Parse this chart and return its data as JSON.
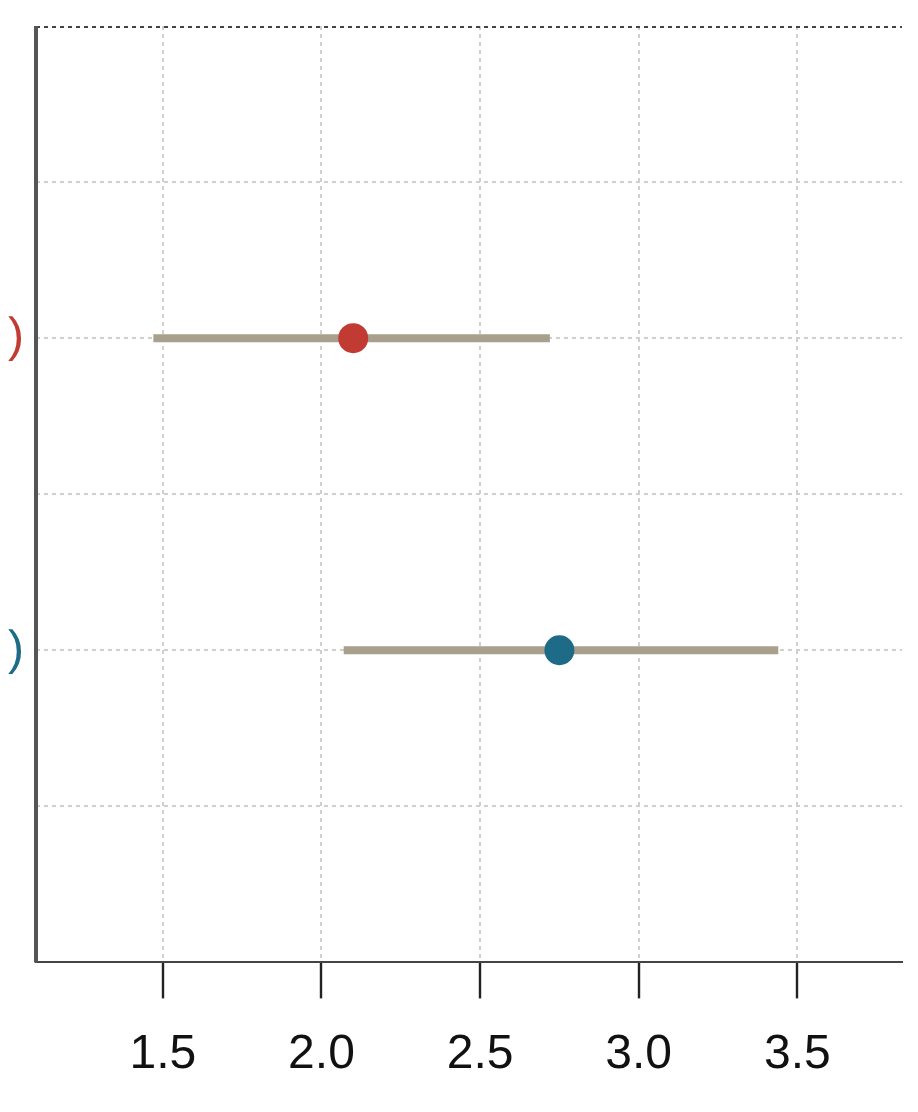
{
  "chart_data": {
    "type": "scatter",
    "orientation": "horizontal",
    "categories": [
      null,
      ")",
      null,
      ")",
      null
    ],
    "values": [
      null,
      2.1,
      null,
      2.75,
      null
    ],
    "colors": [
      null,
      "#c23b33",
      null,
      "#1d6b86",
      null
    ],
    "errors": [
      null,
      [
        1.47,
        2.72
      ],
      null,
      [
        2.07,
        3.44
      ],
      null
    ],
    "xlim": [
      1.1,
      3.83
    ],
    "xticks": [
      1.5,
      {
        "value": 2,
        "label": "2.0"
      },
      2.5,
      {
        "value": 3,
        "label": "3.0"
      },
      3.5
    ],
    "grid": true,
    "marker": "circle",
    "legend": false
  }
}
